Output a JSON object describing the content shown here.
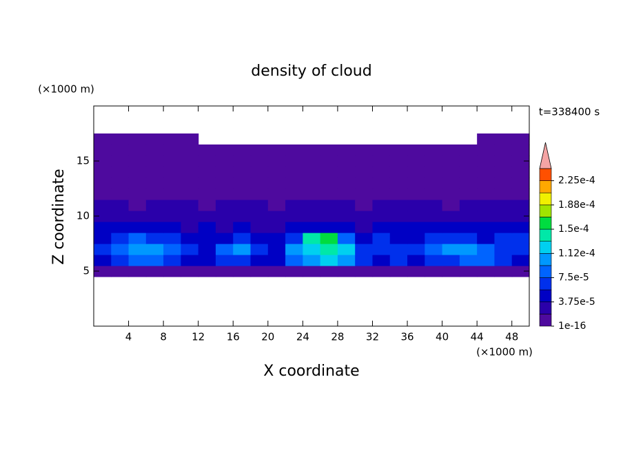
{
  "chart_data": {
    "type": "contour",
    "title": "density of cloud",
    "x_label": "X coordinate",
    "y_label": "Z coordinate",
    "x_unit": "(×1000 m)",
    "y_unit": "(×1000 m)",
    "annotation": "t=338400 s",
    "xlim": [
      0,
      50
    ],
    "xticks": [
      4,
      8,
      12,
      16,
      20,
      24,
      28,
      32,
      36,
      40,
      44,
      48
    ],
    "ylim": [
      0,
      20
    ],
    "yticks": [
      5,
      10,
      15
    ],
    "x": [
      1,
      3,
      5,
      7,
      9,
      11,
      13,
      15,
      17,
      19,
      21,
      23,
      25,
      27,
      29,
      31,
      33,
      35,
      37,
      39,
      41,
      43,
      45,
      47,
      49
    ],
    "z": [
      5,
      6,
      7,
      8,
      9,
      10,
      11,
      12,
      13,
      14,
      15,
      16,
      17
    ],
    "values": [
      [
        1e-05,
        1e-05,
        1e-05,
        1e-05,
        1e-05,
        1e-05,
        1e-05,
        1e-05,
        1e-05,
        1e-05,
        1e-05,
        1e-05,
        1e-05,
        1e-05,
        1e-05,
        1e-05,
        1e-05,
        1e-05,
        1e-05,
        1e-05,
        1e-05,
        1e-05,
        1e-05,
        1e-05,
        1e-05
      ],
      [
        5e-05,
        6e-05,
        8e-05,
        9e-05,
        7e-05,
        5e-05,
        4e-05,
        6e-05,
        7e-05,
        5e-05,
        4e-05,
        9e-05,
        0.00011,
        0.00012,
        0.00011,
        6e-05,
        5e-05,
        6e-05,
        5e-05,
        6e-05,
        7e-05,
        9e-05,
        8e-05,
        6e-05,
        5e-05
      ],
      [
        6e-05,
        9e-05,
        0.00011,
        0.0001,
        8e-05,
        6e-05,
        5e-05,
        9e-05,
        0.0001,
        7e-05,
        5e-05,
        0.00011,
        0.00013,
        0.000145,
        0.00013,
        7e-05,
        6e-05,
        7e-05,
        6e-05,
        8e-05,
        0.0001,
        0.00011,
        9e-05,
        7e-05,
        6e-05
      ],
      [
        5e-05,
        7e-05,
        8e-05,
        7e-05,
        6e-05,
        5e-05,
        4e-05,
        5e-05,
        6e-05,
        5e-05,
        4e-05,
        6e-05,
        0.00014,
        0.00015,
        8e-05,
        5e-05,
        6e-05,
        5e-05,
        4e-05,
        6e-05,
        7e-05,
        6e-05,
        5e-05,
        6e-05,
        7e-05
      ],
      [
        4e-05,
        5e-05,
        4e-05,
        5e-05,
        4e-05,
        3e-05,
        4e-05,
        3e-05,
        4e-05,
        3e-05,
        3e-05,
        4e-05,
        5e-05,
        4e-05,
        4e-05,
        3e-05,
        4e-05,
        5e-05,
        4e-05,
        5e-05,
        4e-05,
        5e-05,
        4e-05,
        5e-05,
        5e-05
      ],
      [
        3e-05,
        2.5e-05,
        3e-05,
        3e-05,
        2.5e-05,
        3e-05,
        2.5e-05,
        3e-05,
        2.5e-05,
        2.5e-05,
        3e-05,
        3e-05,
        2.5e-05,
        3e-05,
        3e-05,
        2.5e-05,
        3e-05,
        2.5e-05,
        3e-05,
        3e-05,
        2.5e-05,
        3e-05,
        3e-05,
        3e-05,
        3e-05
      ],
      [
        2e-05,
        2.2e-05,
        1.5e-05,
        2e-05,
        2.2e-05,
        2e-05,
        1.5e-05,
        2e-05,
        2.2e-05,
        2e-05,
        1.5e-05,
        2e-05,
        2e-05,
        2.2e-05,
        2e-05,
        1.5e-05,
        2e-05,
        2e-05,
        2.2e-05,
        2e-05,
        1.5e-05,
        2e-05,
        2.2e-05,
        2e-05,
        2e-05
      ],
      [
        1e-05,
        1e-05,
        1e-05,
        1e-05,
        1e-05,
        1e-05,
        1e-05,
        1e-05,
        1e-05,
        1e-05,
        1e-05,
        1e-05,
        1e-05,
        1e-05,
        1e-05,
        1e-05,
        1e-05,
        1e-05,
        1e-05,
        1e-05,
        1e-05,
        1e-05,
        1e-05,
        1e-05,
        1e-05
      ],
      [
        1e-05,
        1e-05,
        1e-05,
        1e-05,
        1e-05,
        1e-05,
        1e-05,
        1e-05,
        1e-05,
        1e-05,
        1e-05,
        1e-05,
        1e-05,
        1e-05,
        1e-05,
        1e-05,
        1e-05,
        1e-05,
        1e-05,
        1e-05,
        1e-05,
        1e-05,
        1e-05,
        1e-05,
        1e-05
      ],
      [
        1e-05,
        1e-05,
        1e-05,
        1e-05,
        1e-05,
        1e-05,
        1e-05,
        1e-05,
        1e-05,
        1e-05,
        1e-05,
        1e-05,
        1e-05,
        1e-05,
        1e-05,
        1e-05,
        1e-05,
        1e-05,
        1e-05,
        1e-05,
        1e-05,
        1e-05,
        1e-05,
        1e-05,
        1e-05
      ],
      [
        1e-05,
        1e-05,
        1e-05,
        1e-05,
        1e-05,
        1e-05,
        1e-05,
        1e-05,
        1e-05,
        1e-05,
        1e-05,
        1e-05,
        1e-05,
        1e-05,
        1e-05,
        1e-05,
        1e-05,
        1e-05,
        1e-05,
        1e-05,
        1e-05,
        1e-05,
        1e-05,
        1e-05,
        1e-05
      ],
      [
        1e-05,
        1e-05,
        1e-05,
        1e-05,
        1e-05,
        1e-05,
        1e-05,
        1e-05,
        1e-05,
        1e-05,
        1e-05,
        1e-05,
        1e-05,
        1e-05,
        1e-05,
        1e-05,
        1e-05,
        1e-05,
        1e-05,
        1e-05,
        1e-05,
        1e-05,
        1e-05,
        1e-05,
        1e-05
      ],
      [
        1e-05,
        1e-05,
        1e-05,
        1e-05,
        1e-05,
        1e-05,
        null,
        null,
        null,
        null,
        null,
        null,
        null,
        null,
        null,
        null,
        null,
        null,
        null,
        null,
        null,
        null,
        1e-05,
        1e-05,
        1e-05
      ]
    ],
    "levels": [
      1e-16,
      1.875e-05,
      3.75e-05,
      5.625e-05,
      7.5e-05,
      9.375e-05,
      0.0001125,
      0.00013125,
      0.00015,
      0.00016875,
      0.0001875,
      0.00020625,
      0.000225,
      0.00024375
    ],
    "colors": [
      "#4e0a9e",
      "#2a00aa",
      "#0000c4",
      "#0030ec",
      "#0064ff",
      "#0098ff",
      "#00d0f0",
      "#00e8a8",
      "#00dc40",
      "#a0e400",
      "#f0f000",
      "#ffa800",
      "#ff5000"
    ],
    "over_color": "#f4a4a4",
    "level_ticks": [
      1e-16,
      {
        "value": 3.75e-05,
        "label": "3.75e-5"
      },
      {
        "value": 7.5e-05,
        "label": "7.5e-5"
      },
      {
        "value": 0.0001125,
        "label": "1.12e-4"
      },
      {
        "value": 0.00015,
        "label": "1.5e-4"
      },
      {
        "value": 0.0001875,
        "label": "1.88e-4"
      },
      {
        "value": 0.000225,
        "label": "2.25e-4"
      }
    ]
  }
}
